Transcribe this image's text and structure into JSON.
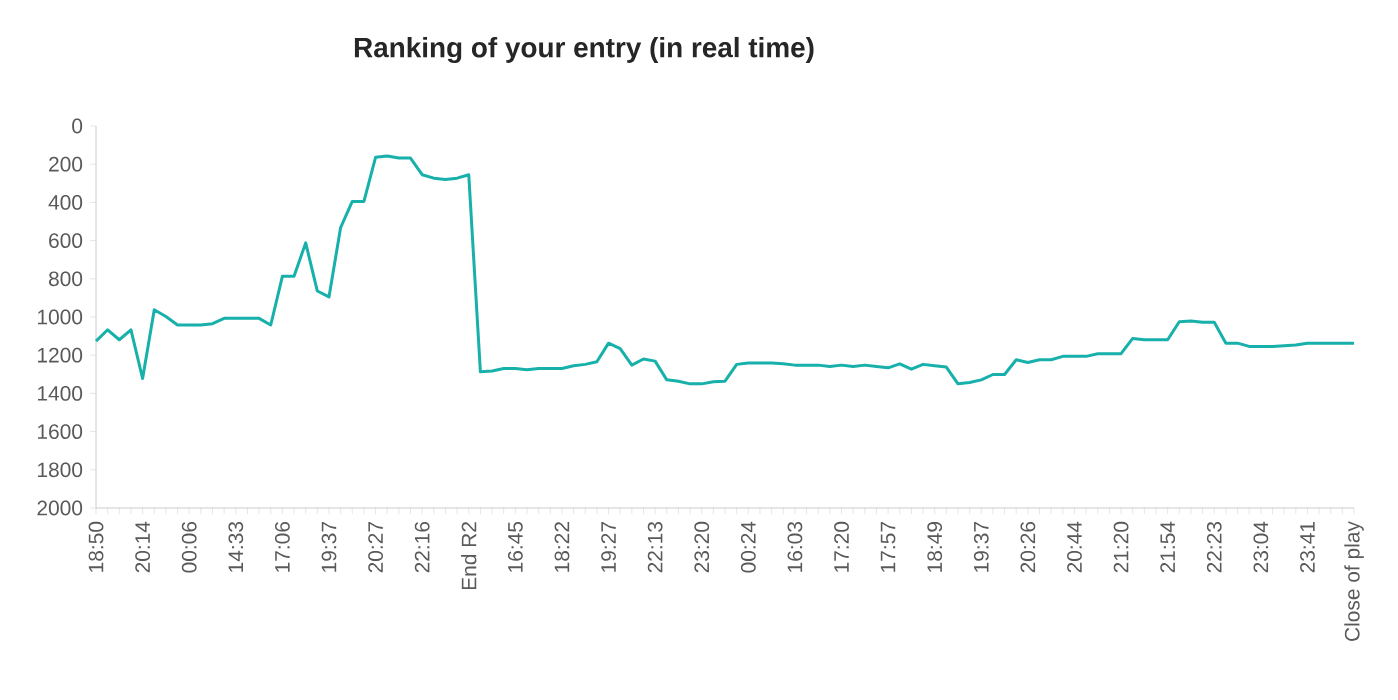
{
  "chart_data": {
    "type": "line",
    "title": "Ranking of your entry (in real time)",
    "categories": [
      "18:50",
      null,
      null,
      null,
      "20:14",
      null,
      null,
      null,
      "00:06",
      null,
      null,
      null,
      "14:33",
      null,
      null,
      null,
      "17:06",
      null,
      null,
      null,
      "19:37",
      null,
      null,
      null,
      "20:27",
      null,
      null,
      null,
      "22:16",
      null,
      null,
      null,
      "End R2",
      null,
      null,
      null,
      "16:45",
      null,
      null,
      null,
      "18:22",
      null,
      null,
      null,
      "19:27",
      null,
      null,
      null,
      "22:13",
      null,
      null,
      null,
      "23:20",
      null,
      null,
      null,
      "00:24",
      null,
      null,
      null,
      "16:03",
      null,
      null,
      null,
      "17:20",
      null,
      null,
      null,
      "17:57",
      null,
      null,
      null,
      "18:49",
      null,
      null,
      null,
      "19:37",
      null,
      null,
      null,
      "20:26",
      null,
      null,
      null,
      "20:44",
      null,
      null,
      null,
      "21:20",
      null,
      null,
      null,
      "21:54",
      null,
      null,
      null,
      "22:23",
      null,
      null,
      null,
      "23:04",
      null,
      null,
      null,
      "23:41",
      null,
      null,
      null,
      "Close of play"
    ],
    "values": [
      1126,
      1067,
      1119,
      1067,
      1322,
      962,
      997,
      1042,
      1042,
      1042,
      1035,
      1007,
      1007,
      1007,
      1007,
      1042,
      787,
      787,
      612,
      864,
      895,
      532,
      395,
      395,
      164,
      157,
      168,
      168,
      255,
      273,
      280,
      273,
      255,
      1287,
      1283,
      1270,
      1270,
      1276,
      1270,
      1270,
      1270,
      1255,
      1248,
      1234,
      1137,
      1165,
      1252,
      1220,
      1231,
      1329,
      1336,
      1350,
      1350,
      1339,
      1336,
      1248,
      1241,
      1241,
      1241,
      1245,
      1252,
      1252,
      1252,
      1259,
      1252,
      1259,
      1252,
      1259,
      1266,
      1245,
      1273,
      1248,
      1255,
      1262,
      1350,
      1343,
      1329,
      1301,
      1301,
      1224,
      1238,
      1224,
      1224,
      1206,
      1206,
      1206,
      1192,
      1192,
      1192,
      1112,
      1119,
      1119,
      1119,
      1025,
      1021,
      1028,
      1028,
      1137,
      1137,
      1154,
      1154,
      1154,
      1150,
      1147,
      1137,
      1137,
      1137,
      1137,
      1137
    ],
    "color": "#17b0aa",
    "ylim": [
      2000,
      0
    ],
    "yticks": [
      0,
      200,
      400,
      600,
      800,
      1000,
      1200,
      1400,
      1600,
      1800,
      2000
    ]
  }
}
